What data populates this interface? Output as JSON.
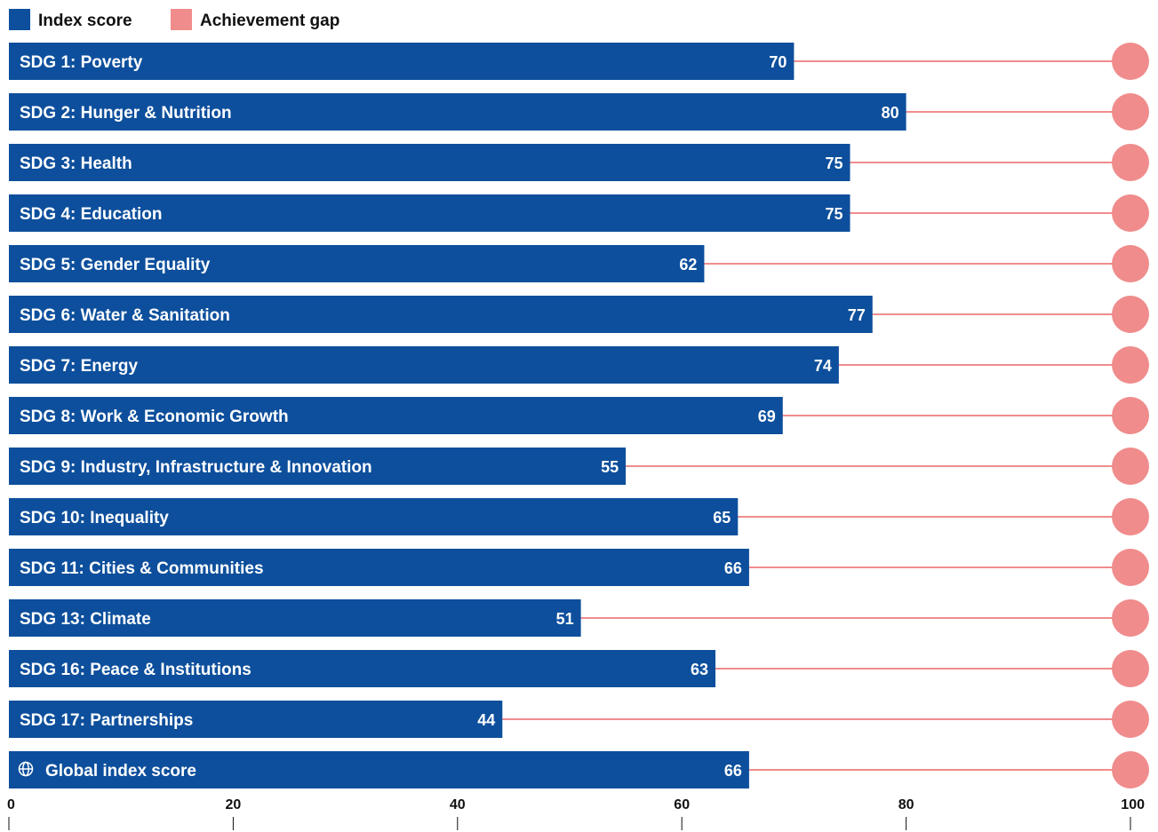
{
  "colors": {
    "index_score": "#0d4f9c",
    "achievement_gap": "#f08c8c",
    "text": "#111111"
  },
  "legend": [
    {
      "label": "Index score",
      "color": "#0d4f9c"
    },
    {
      "label": "Achievement gap",
      "color": "#f08c8c"
    }
  ],
  "chart_data": {
    "type": "bar",
    "orientation": "horizontal",
    "title": "",
    "xlabel": "",
    "ylabel": "",
    "xlim": [
      0,
      100
    ],
    "x_ticks": [
      0,
      20,
      40,
      60,
      80,
      100
    ],
    "grid": false,
    "legend_position": "top-left",
    "categories": [
      "SDG 1: Poverty",
      "SDG 2: Hunger & Nutrition",
      "SDG 3: Health",
      "SDG 4: Education",
      "SDG 5: Gender Equality",
      "SDG 6: Water & Sanitation",
      "SDG 7: Energy",
      "SDG 8: Work & Economic Growth",
      "SDG 9: Industry, Infrastructure & Innovation",
      "SDG 10: Inequality",
      "SDG 11: Cities & Communities",
      "SDG 13: Climate",
      "SDG 16: Peace & Institutions",
      "SDG 17: Partnerships",
      "Global index score"
    ],
    "series": [
      {
        "name": "Index score",
        "values": [
          70,
          80,
          75,
          75,
          62,
          77,
          74,
          69,
          55,
          65,
          66,
          51,
          63,
          44,
          66
        ]
      }
    ],
    "gap_target": 100,
    "globe_icon_on": "Global index score"
  }
}
